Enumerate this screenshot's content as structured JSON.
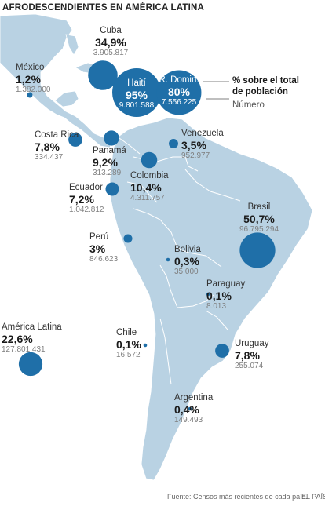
{
  "title": "AFRODESCENDIENTES EN AMÉRICA LATINA",
  "colors": {
    "land": "#b9d2e3",
    "border": "#ffffff",
    "bubble": "#1f6fa8",
    "text": "#1a1a1a",
    "muted": "#7f7f7f"
  },
  "legend": {
    "percent_label": "% sobre el total de población",
    "number_label": "Número"
  },
  "countries": [
    {
      "name": "Cuba",
      "percent": "34,9%",
      "number": "3.905.817",
      "pct_value": 34.9
    },
    {
      "name": "México",
      "percent": "1,2%",
      "number": "1.382.000",
      "pct_value": 1.2
    },
    {
      "name": "Haití",
      "percent": "95%",
      "number": "9.801.588",
      "pct_value": 95
    },
    {
      "name": "R. Domin.",
      "percent": "80%",
      "number": "7.556.225",
      "pct_value": 80
    },
    {
      "name": "Costa Rica",
      "percent": "7,8%",
      "number": "334.437",
      "pct_value": 7.8
    },
    {
      "name": "Panamá",
      "percent": "9,2%",
      "number": "313.289",
      "pct_value": 9.2
    },
    {
      "name": "Venezuela",
      "percent": "3,5%",
      "number": "952.977",
      "pct_value": 3.5
    },
    {
      "name": "Colombia",
      "percent": "10,4%",
      "number": "4.311.757",
      "pct_value": 10.4
    },
    {
      "name": "Ecuador",
      "percent": "7,2%",
      "number": "1.042.812",
      "pct_value": 7.2
    },
    {
      "name": "Brasil",
      "percent": "50,7%",
      "number": "96.795.294",
      "pct_value": 50.7
    },
    {
      "name": "Perú",
      "percent": "3%",
      "number": "846.623",
      "pct_value": 3
    },
    {
      "name": "Bolivia",
      "percent": "0,3%",
      "number": "35.000",
      "pct_value": 0.3
    },
    {
      "name": "Paraguay",
      "percent": "0,1%",
      "number": "8.013",
      "pct_value": 0.1
    },
    {
      "name": "América Latina",
      "percent": "22,6%",
      "number": "127.801.431",
      "pct_value": 22.6
    },
    {
      "name": "Chile",
      "percent": "0,1%",
      "number": "16.572",
      "pct_value": 0.1
    },
    {
      "name": "Uruguay",
      "percent": "7,8%",
      "number": "255.074",
      "pct_value": 7.8
    },
    {
      "name": "Argentina",
      "percent": "0,4%",
      "number": "149.493",
      "pct_value": 0.4
    }
  ],
  "footer": {
    "source": "Fuente: Censos más recientes de cada país.",
    "credit": "EL PAÍS"
  }
}
